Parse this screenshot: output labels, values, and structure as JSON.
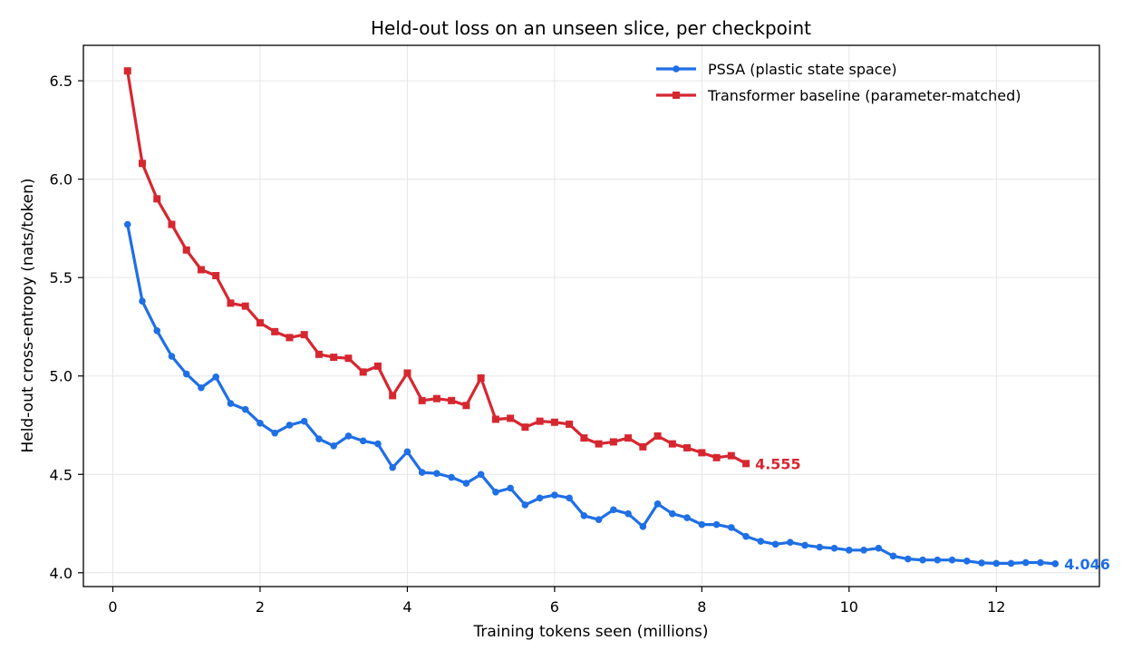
{
  "chart_data": {
    "type": "line",
    "title": "Held-out loss on an unseen slice, per checkpoint",
    "xlabel": "Training tokens seen (millions)",
    "ylabel": "Held-out cross-entropy (nats/token)",
    "xlim": [
      -0.4,
      13.4
    ],
    "ylim": [
      3.93,
      6.68
    ],
    "x_ticks": [
      0,
      2,
      4,
      6,
      8,
      10,
      12
    ],
    "y_ticks": [
      4.0,
      4.5,
      5.0,
      5.5,
      6.0,
      6.5
    ],
    "y_tick_labels": [
      "4.0",
      "4.5",
      "5.0",
      "5.5",
      "6.0",
      "6.5"
    ],
    "grid": true,
    "legend_position": "top-right",
    "series": [
      {
        "name": "PSSA (plastic state space)",
        "color": "#1f6fe5",
        "marker": "circle",
        "end_label": "4.046",
        "x": [
          0.2,
          0.4,
          0.6,
          0.8,
          1.0,
          1.2,
          1.4,
          1.6,
          1.8,
          2.0,
          2.2,
          2.4,
          2.6,
          2.8,
          3.0,
          3.2,
          3.4,
          3.6,
          3.8,
          4.0,
          4.2,
          4.4,
          4.6,
          4.8,
          5.0,
          5.2,
          5.4,
          5.6,
          5.8,
          6.0,
          6.2,
          6.4,
          6.6,
          6.8,
          7.0,
          7.2,
          7.4,
          7.6,
          7.8,
          8.0,
          8.2,
          8.4,
          8.6,
          8.8,
          9.0,
          9.2,
          9.4,
          9.6,
          9.8,
          10.0,
          10.2,
          10.4,
          10.6,
          10.8,
          11.0,
          11.2,
          11.4,
          11.6,
          11.8,
          12.0,
          12.2,
          12.4,
          12.6,
          12.8
        ],
        "y": [
          5.77,
          5.38,
          5.23,
          5.1,
          5.01,
          4.94,
          4.995,
          4.86,
          4.83,
          4.76,
          4.71,
          4.75,
          4.77,
          4.68,
          4.645,
          4.695,
          4.67,
          4.655,
          4.535,
          4.615,
          4.51,
          4.505,
          4.485,
          4.455,
          4.5,
          4.41,
          4.43,
          4.345,
          4.38,
          4.395,
          4.38,
          4.29,
          4.27,
          4.32,
          4.3,
          4.235,
          4.35,
          4.3,
          4.28,
          4.245,
          4.245,
          4.23,
          4.185,
          4.16,
          4.145,
          4.155,
          4.14,
          4.13,
          4.125,
          4.115,
          4.115,
          4.125,
          4.085,
          4.07,
          4.065,
          4.065,
          4.065,
          4.06,
          4.05,
          4.048,
          4.048,
          4.052,
          4.052,
          4.046
        ]
      },
      {
        "name": "Transformer baseline (parameter-matched)",
        "color": "#d62730",
        "marker": "square",
        "end_label": "4.555",
        "x": [
          0.2,
          0.4,
          0.6,
          0.8,
          1.0,
          1.2,
          1.4,
          1.6,
          1.8,
          2.0,
          2.2,
          2.4,
          2.6,
          2.8,
          3.0,
          3.2,
          3.4,
          3.6,
          3.8,
          4.0,
          4.2,
          4.4,
          4.6,
          4.8,
          5.0,
          5.2,
          5.4,
          5.6,
          5.8,
          6.0,
          6.2,
          6.4,
          6.6,
          6.8,
          7.0,
          7.2,
          7.4,
          7.6,
          7.8,
          8.0,
          8.2,
          8.4,
          8.6
        ],
        "y": [
          6.55,
          6.08,
          5.9,
          5.77,
          5.64,
          5.54,
          5.51,
          5.37,
          5.355,
          5.27,
          5.225,
          5.195,
          5.21,
          5.11,
          5.095,
          5.09,
          5.02,
          5.05,
          4.9,
          5.015,
          4.875,
          4.885,
          4.875,
          4.85,
          4.99,
          4.78,
          4.785,
          4.74,
          4.77,
          4.765,
          4.755,
          4.685,
          4.655,
          4.665,
          4.685,
          4.64,
          4.695,
          4.655,
          4.635,
          4.61,
          4.585,
          4.595,
          4.555
        ]
      }
    ]
  }
}
